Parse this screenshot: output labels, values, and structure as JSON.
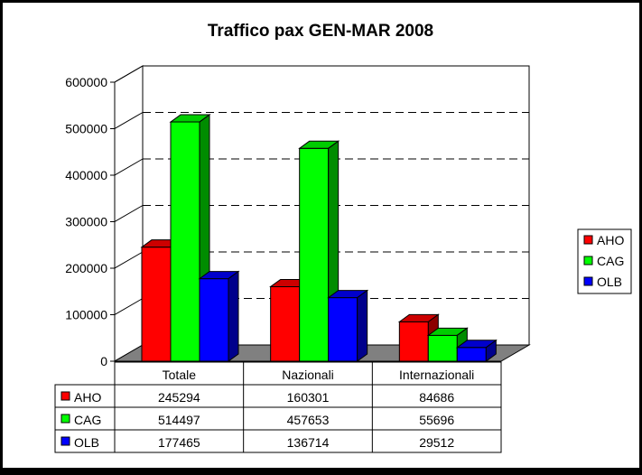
{
  "chart_data": {
    "type": "bar",
    "title": "Traffico pax GEN-MAR 2008",
    "categories": [
      "Totale",
      "Nazionali",
      "Internazionali"
    ],
    "series": [
      {
        "name": "AHO",
        "color": "#ff0000",
        "values": [
          245294,
          160301,
          84686
        ],
        "labels": [
          "245294",
          "160301",
          "84686"
        ]
      },
      {
        "name": "CAG",
        "color": "#00ff00",
        "values": [
          514497,
          457653,
          55696
        ],
        "labels": [
          "514497",
          "457653",
          "55696"
        ]
      },
      {
        "name": "OLB",
        "color": "#0000ff",
        "values": [
          177465,
          136714,
          29512
        ],
        "labels": [
          "177465",
          "136714",
          "29512"
        ]
      }
    ],
    "y_ticks": [
      "0",
      "100000",
      "200000",
      "300000",
      "400000",
      "500000",
      "600000"
    ],
    "ylim": [
      0,
      600000
    ],
    "grid": true,
    "legend": "right",
    "data_table": true
  }
}
